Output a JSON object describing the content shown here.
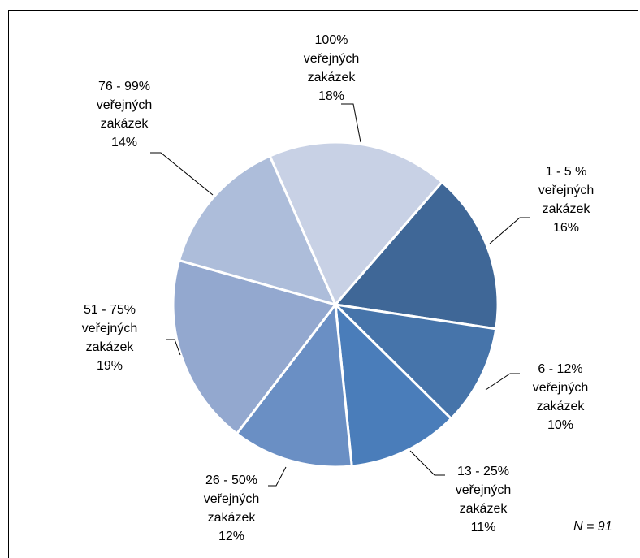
{
  "chart_data": {
    "type": "pie",
    "categories": [
      "1 - 5 % veřejných zakázek",
      "6 - 12% veřejných zakázek",
      "13 - 25% veřejných zakázek",
      "26 - 50% veřejných zakázek",
      "51 - 75% veřejných zakázek",
      "76 - 99% veřejných zakázek",
      "100% veřejných zakázek"
    ],
    "values": [
      16,
      10,
      11,
      12,
      19,
      14,
      18
    ],
    "value_labels": [
      "16%",
      "10%",
      "11%",
      "12%",
      "19%",
      "14%",
      "18%"
    ],
    "colors": [
      "#3f6797",
      "#4674aa",
      "#4a7dba",
      "#6a8fc4",
      "#93a8cf",
      "#adbdda",
      "#c8d1e5"
    ],
    "annotation": "N = 91"
  }
}
